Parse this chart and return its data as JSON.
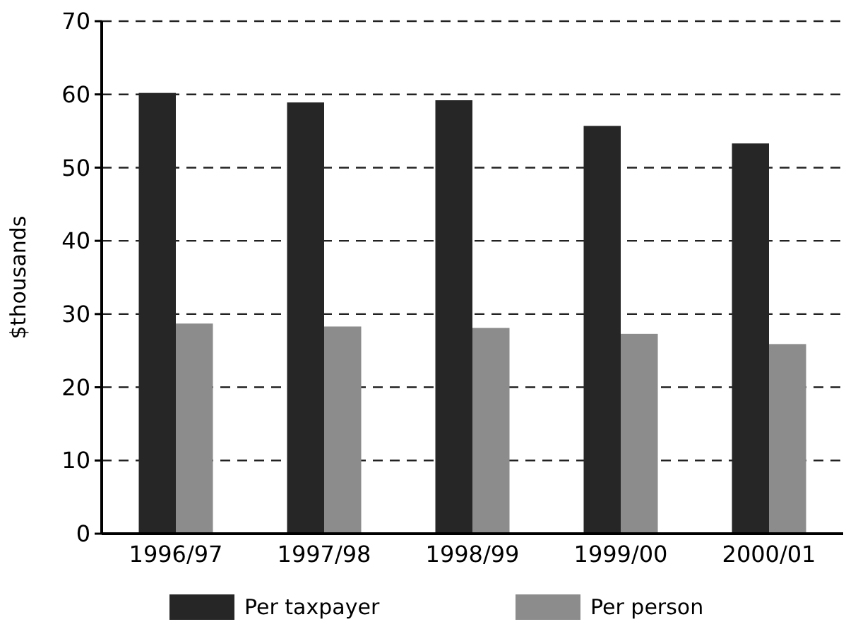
{
  "chart_data": {
    "type": "bar",
    "ylabel": "$thousands",
    "categories": [
      "1996/97",
      "1997/98",
      "1998/99",
      "1999/00",
      "2000/01"
    ],
    "series": [
      {
        "name": "Per taxpayer",
        "color": "#262626",
        "values": [
          60.2,
          58.9,
          59.2,
          55.7,
          53.3
        ]
      },
      {
        "name": "Per person",
        "color": "#8c8c8c",
        "values": [
          28.7,
          28.3,
          28.1,
          27.3,
          25.9
        ]
      }
    ],
    "ylim": [
      0,
      70
    ],
    "yticks": [
      0,
      10,
      20,
      30,
      40,
      50,
      60,
      70
    ],
    "grid": "y",
    "legend": "bottom"
  }
}
